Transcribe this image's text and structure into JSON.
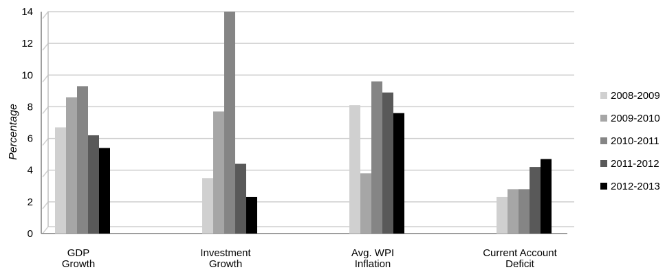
{
  "chart_data": {
    "type": "bar",
    "ylabel": "Percentage",
    "ylim": [
      0,
      14
    ],
    "yticks": [
      0,
      2,
      4,
      6,
      8,
      10,
      12,
      14
    ],
    "grid": true,
    "legend_position": "right",
    "categories": [
      [
        "GDP",
        "Growth"
      ],
      [
        "Investment",
        "Growth"
      ],
      [
        "Avg. WPI",
        "Inflation"
      ],
      [
        "Current Account",
        "Deficit"
      ]
    ],
    "series": [
      {
        "name": "2008-2009",
        "color": "#d0d0d0",
        "values": [
          6.7,
          3.5,
          8.1,
          2.3
        ]
      },
      {
        "name": "2009-2010",
        "color": "#a6a6a6",
        "values": [
          8.6,
          7.7,
          3.8,
          2.8
        ]
      },
      {
        "name": "2010-2011",
        "color": "#858585",
        "values": [
          9.3,
          14.0,
          9.6,
          2.8
        ]
      },
      {
        "name": "2011-2012",
        "color": "#595959",
        "values": [
          6.2,
          4.4,
          8.9,
          4.2
        ]
      },
      {
        "name": "2012-2013",
        "color": "#000000",
        "values": [
          5.4,
          2.3,
          7.6,
          4.7
        ]
      }
    ]
  }
}
